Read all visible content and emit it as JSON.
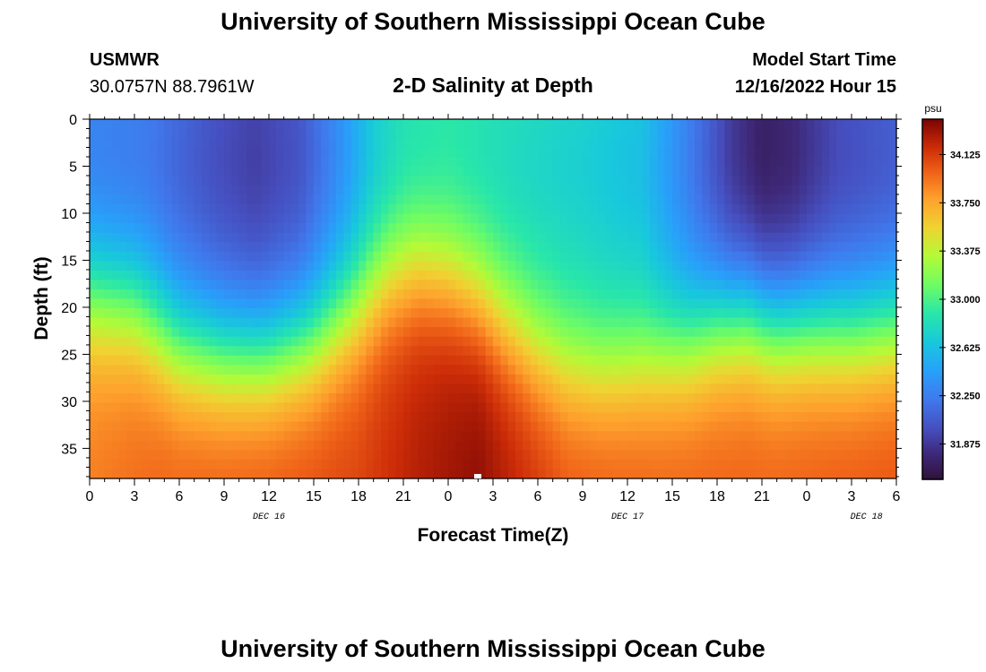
{
  "header": {
    "title": "University of Southern Mississippi Ocean Cube",
    "station": "USMWR",
    "coords": "30.0757N  88.7961W",
    "subtitle": "2-D Salinity at Depth",
    "model_start_label": "Model Start Time",
    "model_start_value": "12/16/2022 Hour 15"
  },
  "footer": {
    "title": "University of Southern Mississippi Ocean Cube"
  },
  "chart_data": {
    "type": "heatmap",
    "title": "2-D Salinity at Depth",
    "xlabel": "Forecast Time(Z)",
    "ylabel": "Depth (ft)",
    "x_tick_labels": [
      "0",
      "3",
      "6",
      "9",
      "12",
      "15",
      "18",
      "21",
      "0",
      "3",
      "6",
      "9",
      "12",
      "15",
      "18",
      "21",
      "0",
      "3",
      "6"
    ],
    "x_hours_range": [
      0,
      54
    ],
    "day_labels": [
      {
        "label": "DEC 16",
        "hour": 12
      },
      {
        "label": "DEC 17",
        "hour": 36
      },
      {
        "label": "DEC 18",
        "hour": 52
      }
    ],
    "y_ticks": [
      0,
      5,
      10,
      15,
      20,
      25,
      30,
      35
    ],
    "ylim": [
      0,
      38.2
    ],
    "colorbar": {
      "unit": "psu",
      "range": [
        31.6,
        34.4
      ],
      "tick_labels": [
        "34.125",
        "33.750",
        "33.375",
        "33.000",
        "32.625",
        "32.250",
        "31.875"
      ],
      "tick_values": [
        34.125,
        33.75,
        33.375,
        33.0,
        32.625,
        32.25,
        31.875
      ]
    },
    "field_model": {
      "description": "salinity(psu) vs forecast hour and depth(ft)",
      "surface_profile": [
        [
          0,
          32.3
        ],
        [
          4,
          32.25
        ],
        [
          8,
          32.05
        ],
        [
          11,
          31.95
        ],
        [
          14,
          32.05
        ],
        [
          17,
          32.4
        ],
        [
          19,
          32.7
        ],
        [
          21,
          32.85
        ],
        [
          24,
          32.9
        ],
        [
          27,
          32.85
        ],
        [
          30,
          32.8
        ],
        [
          33,
          32.75
        ],
        [
          37,
          32.65
        ],
        [
          40,
          32.3
        ],
        [
          43,
          31.9
        ],
        [
          45,
          31.75
        ],
        [
          47,
          31.8
        ],
        [
          50,
          32.0
        ],
        [
          54,
          32.1
        ]
      ],
      "halocline_profile": [
        [
          0,
          19
        ],
        [
          3,
          20
        ],
        [
          6,
          24
        ],
        [
          9,
          25
        ],
        [
          12,
          25
        ],
        [
          15,
          23.5
        ],
        [
          18,
          20
        ],
        [
          20,
          17
        ],
        [
          22,
          16
        ],
        [
          24,
          17
        ],
        [
          26,
          19
        ],
        [
          28,
          22
        ],
        [
          30,
          24.5
        ],
        [
          32,
          26
        ],
        [
          34,
          26.5
        ],
        [
          36,
          26
        ],
        [
          38,
          25
        ],
        [
          40,
          24
        ],
        [
          42,
          22
        ],
        [
          44,
          21
        ],
        [
          46,
          22
        ],
        [
          48,
          22
        ],
        [
          51,
          22.5
        ],
        [
          54,
          22
        ]
      ],
      "bottom_profile": [
        [
          0,
          33.9
        ],
        [
          5,
          34.0
        ],
        [
          12,
          34.05
        ],
        [
          18,
          34.1
        ],
        [
          22,
          34.25
        ],
        [
          26,
          34.35
        ],
        [
          28,
          34.25
        ],
        [
          32,
          34.05
        ],
        [
          38,
          34.0
        ],
        [
          46,
          34.0
        ],
        [
          54,
          34.05
        ]
      ]
    }
  }
}
